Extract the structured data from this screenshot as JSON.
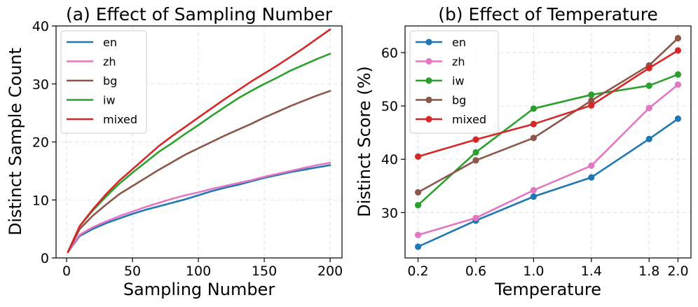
{
  "chart_data": [
    {
      "type": "line",
      "title": "(a) Effect of Sampling Number",
      "xlabel": "Sampling Number",
      "ylabel": "Distinct Sample Count",
      "xlim": [
        -8,
        209
      ],
      "ylim": [
        0,
        40
      ],
      "xticks": [
        0,
        50,
        100,
        150,
        200
      ],
      "yticks": [
        0,
        10,
        20,
        30,
        40
      ],
      "xtick_labels": [
        "0",
        "50",
        "100",
        "150",
        "200"
      ],
      "ytick_labels": [
        "0",
        "10",
        "20",
        "30",
        "40"
      ],
      "grid": true,
      "legend_position": "top-left",
      "markers": false,
      "x": [
        1,
        10,
        20,
        30,
        40,
        50,
        60,
        70,
        80,
        90,
        100,
        110,
        120,
        130,
        140,
        150,
        160,
        170,
        180,
        190,
        200
      ],
      "series": [
        {
          "name": "en",
          "color": "#1f77b4",
          "values": [
            1,
            3.8,
            5.0,
            6.0,
            6.8,
            7.6,
            8.3,
            8.9,
            9.5,
            10.1,
            10.8,
            11.5,
            12.1,
            12.6,
            13.2,
            13.8,
            14.3,
            14.8,
            15.2,
            15.6,
            16.0
          ]
        },
        {
          "name": "zh",
          "color": "#e377c2",
          "values": [
            1,
            4.0,
            5.3,
            6.3,
            7.2,
            8.0,
            8.8,
            9.5,
            10.2,
            10.8,
            11.3,
            11.9,
            12.4,
            12.9,
            13.4,
            14.0,
            14.5,
            15.0,
            15.5,
            16.0,
            16.4
          ]
        },
        {
          "name": "bg",
          "color": "#8c564b",
          "values": [
            1,
            5.0,
            7.3,
            9.2,
            11.0,
            12.4,
            13.8,
            15.2,
            16.5,
            17.8,
            18.9,
            20.0,
            21.1,
            22.1,
            23.1,
            24.2,
            25.2,
            26.2,
            27.1,
            28.0,
            28.8
          ]
        },
        {
          "name": "iw",
          "color": "#2ca02c",
          "values": [
            1,
            5.5,
            8.2,
            10.6,
            12.8,
            14.7,
            16.5,
            18.3,
            19.8,
            21.4,
            22.9,
            24.5,
            26.0,
            27.5,
            28.8,
            30.0,
            31.1,
            32.3,
            33.3,
            34.3,
            35.2
          ]
        },
        {
          "name": "mixed",
          "color": "#d62728",
          "values": [
            1,
            5.5,
            8.4,
            11.0,
            13.3,
            15.3,
            17.3,
            19.3,
            21.0,
            22.6,
            24.2,
            25.8,
            27.4,
            28.9,
            30.4,
            31.8,
            33.2,
            34.7,
            36.2,
            37.8,
            39.4
          ]
        }
      ]
    },
    {
      "type": "line",
      "title": "(b) Effect of Temperature",
      "xlabel": "Temperature",
      "ylabel": "Distinct Score (%)",
      "xlim": [
        0.11,
        2.09
      ],
      "ylim": [
        21.5,
        65
      ],
      "xticks": [
        0.2,
        0.6,
        1.0,
        1.4,
        1.8,
        2.0
      ],
      "yticks": [
        30,
        40,
        50,
        60
      ],
      "xtick_labels": [
        "0.2",
        "0.6",
        "1.0",
        "1.4",
        "1.8",
        "2.0"
      ],
      "ytick_labels": [
        "30",
        "40",
        "50",
        "60"
      ],
      "grid": true,
      "legend_position": "top-left",
      "markers": true,
      "x": [
        0.2,
        0.6,
        1.0,
        1.4,
        1.8,
        2.0
      ],
      "series": [
        {
          "name": "en",
          "color": "#1f77b4",
          "values": [
            23.6,
            28.5,
            33.0,
            36.6,
            43.8,
            47.6
          ]
        },
        {
          "name": "zh",
          "color": "#e377c2",
          "values": [
            25.8,
            29.0,
            34.2,
            38.8,
            49.6,
            54.0
          ]
        },
        {
          "name": "iw",
          "color": "#2ca02c",
          "values": [
            31.4,
            41.3,
            49.5,
            52.1,
            53.8,
            55.9
          ]
        },
        {
          "name": "bg",
          "color": "#8c564b",
          "values": [
            33.8,
            39.8,
            44.0,
            51.0,
            57.6,
            62.7
          ]
        },
        {
          "name": "mixed",
          "color": "#d62728",
          "values": [
            40.5,
            43.7,
            46.6,
            50.1,
            57.1,
            60.4
          ]
        }
      ]
    }
  ]
}
